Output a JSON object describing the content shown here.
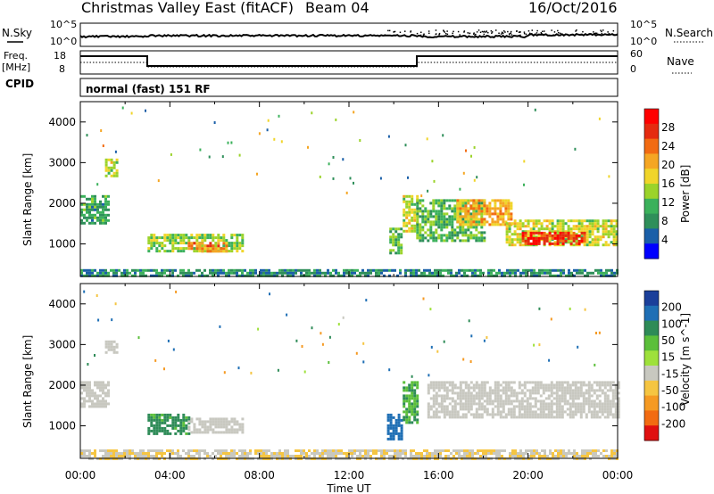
{
  "header": {
    "title": "Christmas Valley East (fitACF)",
    "beam": "Beam 04",
    "date": "16/Oct/2016"
  },
  "panels": {
    "nsky": {
      "left_label": "N.Sky",
      "right_label": "N.Search",
      "left_ticks": [
        "10^5",
        "10^0"
      ],
      "right_ticks": [
        "10^5",
        "10^0"
      ]
    },
    "freq": {
      "left_label_1": "Freq.",
      "left_label_2": "[MHz]",
      "right_label": "Nave",
      "left_ticks": [
        "18",
        "8"
      ],
      "right_ticks": [
        "60",
        "0"
      ]
    },
    "cpid": {
      "label": "CPID",
      "value": "normal (fast) 151 RF"
    }
  },
  "colors": {
    "power_scale": [
      "#0000ff",
      "#1a5fa8",
      "#2f8f5a",
      "#3bb15b",
      "#9bd32a",
      "#f0d52a",
      "#f5a623",
      "#f26b12",
      "#e52b10",
      "#ff0000"
    ],
    "velocity_scale": [
      "#1b3f9a",
      "#1f6fb5",
      "#2e8b57",
      "#5bbf3a",
      "#9ee13b",
      "#c8c8c0",
      "#f5c542",
      "#f59a23",
      "#f26b12",
      "#e01010"
    ],
    "ground_scatter": "#c8c8c0"
  },
  "chart_data": [
    {
      "type": "heatmap",
      "name_hint": "power-panel",
      "xlabel": "Time UT",
      "ylabel": "Slant Range [km]",
      "colorbar_label": "Power [dB]",
      "x_ticks": [
        "00:00",
        "04:00",
        "08:00",
        "12:00",
        "16:00",
        "20:00",
        "00:00"
      ],
      "y_ticks": [
        1000,
        2000,
        3000,
        4000
      ],
      "xlim_hours": [
        0,
        24
      ],
      "ylim": [
        200,
        4500
      ],
      "colorbar_ticks": [
        "28",
        "24",
        "20",
        "16",
        "12",
        "8",
        "4"
      ],
      "colorbar_range": [
        0,
        32
      ],
      "regions": [
        {
          "t0": 0.0,
          "t1": 1.2,
          "r0": 1500,
          "r1": 2200,
          "level": 10
        },
        {
          "t0": 1.1,
          "t1": 1.6,
          "r0": 2700,
          "r1": 3100,
          "level": 16
        },
        {
          "t0": 3.0,
          "t1": 7.3,
          "r0": 800,
          "r1": 1250,
          "level": 14
        },
        {
          "t0": 4.8,
          "t1": 6.5,
          "r0": 850,
          "r1": 1050,
          "level": 22
        },
        {
          "t0": 13.8,
          "t1": 14.3,
          "r0": 800,
          "r1": 1400,
          "level": 12
        },
        {
          "t0": 14.4,
          "t1": 15.0,
          "r0": 1300,
          "r1": 2200,
          "level": 16
        },
        {
          "t0": 15.0,
          "t1": 18.0,
          "r0": 1100,
          "r1": 2100,
          "level": 12
        },
        {
          "t0": 16.8,
          "t1": 19.2,
          "r0": 1500,
          "r1": 2100,
          "level": 20
        },
        {
          "t0": 19.0,
          "t1": 24.0,
          "r0": 1000,
          "r1": 1600,
          "level": 16
        },
        {
          "t0": 19.6,
          "t1": 22.5,
          "r0": 1000,
          "r1": 1300,
          "level": 28
        },
        {
          "t0": 0.0,
          "t1": 24.0,
          "r0": 200,
          "r1": 380,
          "level": 8
        }
      ]
    },
    {
      "type": "heatmap",
      "name_hint": "velocity-panel",
      "xlabel": "Time UT",
      "ylabel": "Slant Range [km]",
      "colorbar_label": "Velocity [m s^-1]",
      "x_ticks": [
        "00:00",
        "04:00",
        "08:00",
        "12:00",
        "16:00",
        "20:00",
        "00:00"
      ],
      "y_ticks": [
        1000,
        2000,
        3000,
        4000
      ],
      "xlim_hours": [
        0,
        24
      ],
      "ylim": [
        200,
        4500
      ],
      "colorbar_ticks": [
        "200",
        "100",
        "50",
        "15",
        "-15",
        "-50",
        "-100",
        "-200"
      ],
      "colorbar_range": [
        -250,
        250
      ],
      "regions": [
        {
          "t0": 0.0,
          "t1": 1.2,
          "r0": 1500,
          "r1": 2100,
          "v": 0
        },
        {
          "t0": 1.1,
          "t1": 1.6,
          "r0": 2800,
          "r1": 3100,
          "v": 0
        },
        {
          "t0": 3.0,
          "t1": 4.8,
          "r0": 800,
          "r1": 1300,
          "v": 40
        },
        {
          "t0": 4.8,
          "t1": 7.3,
          "r0": 850,
          "r1": 1200,
          "v": 0
        },
        {
          "t0": 13.7,
          "t1": 14.3,
          "r0": 700,
          "r1": 1300,
          "v": 120
        },
        {
          "t0": 14.4,
          "t1": 15.1,
          "r0": 1100,
          "r1": 2100,
          "v": 30
        },
        {
          "t0": 15.5,
          "t1": 24.0,
          "r0": 1200,
          "r1": 2100,
          "v": 0
        },
        {
          "t0": 0.0,
          "t1": 24.0,
          "r0": 200,
          "r1": 420,
          "v": -30
        }
      ]
    }
  ]
}
